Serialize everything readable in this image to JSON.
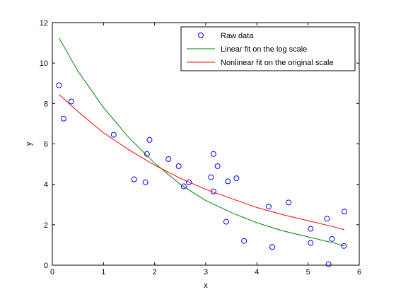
{
  "chart_data": {
    "type": "scatter",
    "title": "",
    "xlabel": "x",
    "ylabel": "y",
    "xlim": [
      0,
      6
    ],
    "ylim": [
      0,
      12
    ],
    "xticks": [
      "0",
      "1",
      "2",
      "3",
      "4",
      "5",
      "6"
    ],
    "yticks": [
      "0",
      "2",
      "4",
      "6",
      "8",
      "10",
      "12"
    ],
    "grid": false,
    "legend_position": "top-right",
    "colors": {
      "raw": "#0000ff",
      "linear_log": "#008000",
      "nonlinear": "#ff0000"
    },
    "series": [
      {
        "name": "Raw data",
        "kind": "markers",
        "x": [
          0.13,
          0.22,
          0.37,
          1.2,
          1.6,
          1.82,
          1.85,
          1.9,
          2.27,
          2.47,
          2.57,
          2.67,
          3.1,
          3.15,
          3.15,
          3.23,
          3.4,
          3.43,
          3.6,
          3.75,
          4.23,
          4.3,
          4.62,
          5.05,
          5.05,
          5.37,
          5.4,
          5.47,
          5.7,
          5.71
        ],
        "y": [
          8.9,
          7.25,
          8.1,
          6.45,
          4.25,
          4.1,
          5.5,
          6.2,
          5.25,
          4.9,
          3.9,
          4.1,
          4.35,
          5.5,
          3.65,
          4.9,
          2.15,
          4.15,
          4.3,
          1.2,
          2.9,
          0.9,
          3.1,
          1.8,
          1.1,
          2.3,
          0.05,
          1.3,
          0.95,
          2.65
        ]
      },
      {
        "name": "Linear fit on the log scale",
        "kind": "line",
        "x": [
          0.13,
          0.5,
          1.0,
          1.5,
          2.0,
          2.5,
          3.0,
          3.5,
          4.0,
          4.5,
          5.0,
          5.5,
          5.71
        ],
        "y": [
          11.25,
          9.6,
          7.8,
          6.3,
          5.05,
          4.0,
          3.2,
          2.6,
          2.1,
          1.7,
          1.4,
          1.1,
          0.95
        ]
      },
      {
        "name": "Nonlinear fit on the original scale",
        "kind": "line",
        "x": [
          0.13,
          0.5,
          1.0,
          1.5,
          2.0,
          2.5,
          3.0,
          3.5,
          4.0,
          4.5,
          5.0,
          5.5,
          5.71
        ],
        "y": [
          8.45,
          7.6,
          6.55,
          5.7,
          4.95,
          4.3,
          3.75,
          3.3,
          2.85,
          2.5,
          2.2,
          1.9,
          1.75
        ]
      }
    ]
  }
}
